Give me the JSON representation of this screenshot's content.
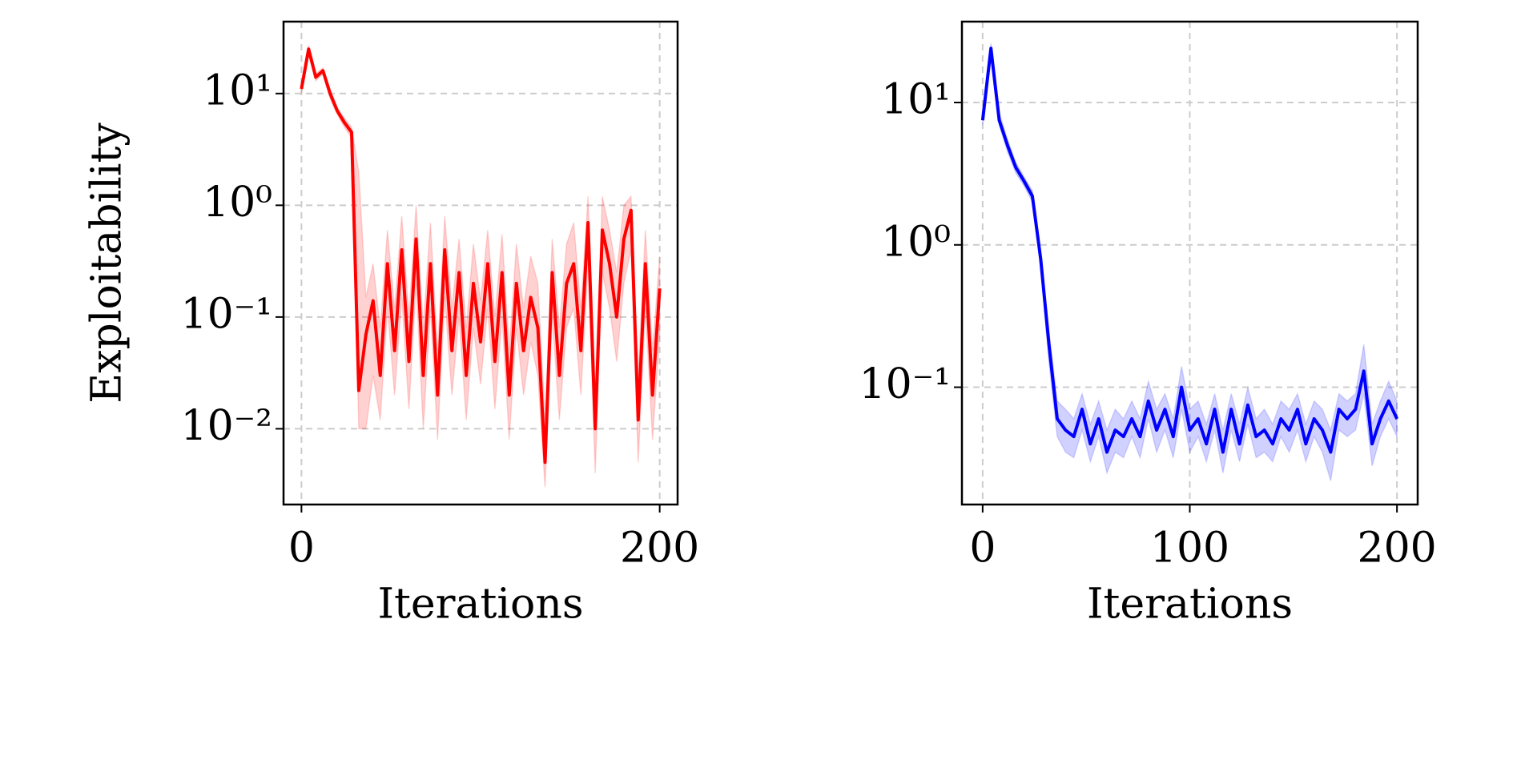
{
  "chart_data": [
    {
      "type": "line",
      "ylabel": "Exploitability",
      "xlabel": "Iterations",
      "log_y": true,
      "grid": true,
      "xlim": [
        -10,
        210
      ],
      "xticks": [
        0,
        200
      ],
      "ylim": [
        0.0021,
        44
      ],
      "yticks": [
        {
          "value": 0.01,
          "label": "10⁻²"
        },
        {
          "value": 0.1,
          "label": "10⁻¹"
        },
        {
          "value": 1,
          "label": "10⁰"
        },
        {
          "value": 10,
          "label": "10¹"
        }
      ],
      "x": [
        0,
        4,
        8,
        12,
        16,
        20,
        24,
        28,
        32,
        36,
        40,
        44,
        48,
        52,
        56,
        60,
        64,
        68,
        72,
        76,
        80,
        84,
        88,
        92,
        96,
        100,
        104,
        108,
        112,
        116,
        120,
        124,
        128,
        132,
        136,
        140,
        144,
        148,
        152,
        156,
        160,
        164,
        168,
        172,
        176,
        180,
        184,
        188,
        192,
        196,
        200
      ],
      "series": [
        {
          "color": "#ff0000",
          "values": [
            11,
            25,
            14,
            16,
            10,
            7,
            5.5,
            4.5,
            0.022,
            0.07,
            0.14,
            0.03,
            0.3,
            0.05,
            0.4,
            0.04,
            0.5,
            0.03,
            0.3,
            0.02,
            0.4,
            0.05,
            0.25,
            0.03,
            0.2,
            0.06,
            0.3,
            0.04,
            0.25,
            0.02,
            0.2,
            0.05,
            0.15,
            0.08,
            0.005,
            0.25,
            0.03,
            0.2,
            0.3,
            0.05,
            0.7,
            0.01,
            0.6,
            0.3,
            0.1,
            0.5,
            0.9,
            0.012,
            0.3,
            0.02,
            0.18
          ],
          "upper": [
            12,
            27,
            15,
            17,
            11,
            7.5,
            6,
            5,
            2,
            0.15,
            0.3,
            0.08,
            0.6,
            0.12,
            0.8,
            0.1,
            1,
            0.08,
            0.7,
            0.05,
            0.8,
            0.12,
            0.5,
            0.08,
            0.45,
            0.14,
            0.6,
            0.1,
            0.55,
            0.05,
            0.45,
            0.12,
            0.35,
            0.2,
            0.012,
            0.5,
            0.08,
            0.45,
            0.7,
            0.12,
            1.2,
            0.025,
            1.2,
            0.6,
            0.25,
            1,
            1.2,
            0.03,
            0.6,
            0.05,
            0.35
          ],
          "lower": [
            10,
            22,
            13,
            15,
            9,
            6.5,
            5,
            4,
            0.01,
            0.01,
            0.03,
            0.012,
            0.12,
            0.02,
            0.15,
            0.015,
            0.2,
            0.01,
            0.12,
            0.008,
            0.15,
            0.02,
            0.1,
            0.012,
            0.08,
            0.025,
            0.12,
            0.015,
            0.1,
            0.008,
            0.08,
            0.02,
            0.06,
            0.03,
            0.003,
            0.1,
            0.012,
            0.08,
            0.12,
            0.02,
            0.3,
            0.004,
            0.25,
            0.12,
            0.04,
            0.2,
            0.4,
            0.005,
            0.12,
            0.008,
            0.07
          ]
        }
      ]
    },
    {
      "type": "line",
      "xlabel": "Iterations",
      "log_y": true,
      "grid": true,
      "xlim": [
        -10,
        210
      ],
      "xticks": [
        0,
        100,
        200
      ],
      "ylim": [
        0.015,
        37
      ],
      "yticks": [
        {
          "value": 0.1,
          "label": "10⁻¹"
        },
        {
          "value": 1,
          "label": "10⁰"
        },
        {
          "value": 10,
          "label": "10¹"
        }
      ],
      "x": [
        0,
        4,
        8,
        12,
        16,
        20,
        24,
        28,
        32,
        36,
        40,
        44,
        48,
        52,
        56,
        60,
        64,
        68,
        72,
        76,
        80,
        84,
        88,
        92,
        96,
        100,
        104,
        108,
        112,
        116,
        120,
        124,
        128,
        132,
        136,
        140,
        144,
        148,
        152,
        156,
        160,
        164,
        168,
        172,
        176,
        180,
        184,
        188,
        192,
        196,
        200
      ],
      "series": [
        {
          "color": "#0000ff",
          "values": [
            7.5,
            24,
            7.5,
            5,
            3.5,
            2.8,
            2.2,
            0.8,
            0.2,
            0.06,
            0.05,
            0.045,
            0.07,
            0.04,
            0.06,
            0.035,
            0.05,
            0.045,
            0.06,
            0.045,
            0.08,
            0.05,
            0.07,
            0.045,
            0.1,
            0.05,
            0.06,
            0.04,
            0.07,
            0.035,
            0.07,
            0.04,
            0.075,
            0.045,
            0.05,
            0.04,
            0.06,
            0.05,
            0.07,
            0.04,
            0.06,
            0.05,
            0.035,
            0.07,
            0.06,
            0.07,
            0.13,
            0.04,
            0.06,
            0.08,
            0.06
          ],
          "upper": [
            8,
            26,
            8.5,
            5.5,
            3.8,
            3,
            2.4,
            0.9,
            0.25,
            0.08,
            0.07,
            0.06,
            0.09,
            0.055,
            0.08,
            0.05,
            0.07,
            0.06,
            0.08,
            0.06,
            0.11,
            0.07,
            0.09,
            0.06,
            0.14,
            0.07,
            0.08,
            0.055,
            0.09,
            0.05,
            0.09,
            0.055,
            0.1,
            0.06,
            0.07,
            0.055,
            0.08,
            0.07,
            0.09,
            0.055,
            0.08,
            0.07,
            0.05,
            0.09,
            0.08,
            0.09,
            0.2,
            0.055,
            0.08,
            0.11,
            0.08
          ],
          "lower": [
            7,
            22,
            7,
            4.5,
            3.2,
            2.6,
            2,
            0.7,
            0.15,
            0.045,
            0.035,
            0.032,
            0.05,
            0.03,
            0.045,
            0.025,
            0.035,
            0.032,
            0.045,
            0.032,
            0.06,
            0.035,
            0.05,
            0.032,
            0.07,
            0.035,
            0.045,
            0.03,
            0.05,
            0.025,
            0.05,
            0.03,
            0.055,
            0.032,
            0.035,
            0.03,
            0.045,
            0.035,
            0.05,
            0.03,
            0.045,
            0.035,
            0.022,
            0.05,
            0.045,
            0.05,
            0.09,
            0.028,
            0.045,
            0.06,
            0.045
          ]
        }
      ]
    }
  ]
}
